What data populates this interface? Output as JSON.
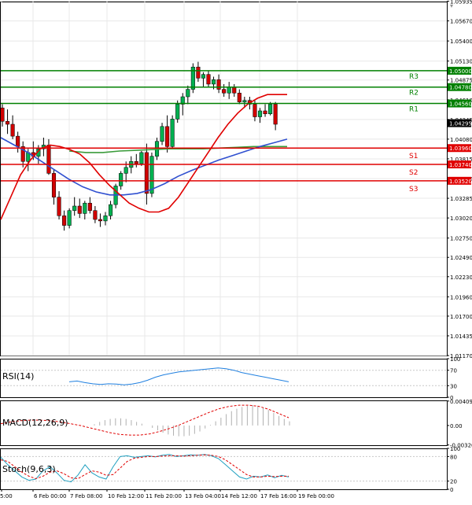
{
  "chart_data": {
    "type": "candlestick",
    "main": {
      "ylim": [
        1.0117,
        1.0593
      ],
      "y_ticks": [
        "1.05935",
        "1.05670",
        "1.05400",
        "1.05130",
        "1.04875",
        "1.04610",
        "1.04345",
        "1.04080",
        "1.03815",
        "1.03550",
        "1.03285",
        "1.03020",
        "1.02750",
        "1.02490",
        "1.02230",
        "1.01960",
        "1.01700",
        "1.01435",
        "1.01170"
      ],
      "current_price": {
        "label": "1.04295",
        "value": 1.04295
      },
      "levels": [
        {
          "name": "R3",
          "value": 1.05,
          "label": "1.05000",
          "color": "#008000"
        },
        {
          "name": "R2",
          "value": 1.0478,
          "label": "1.04780",
          "color": "#008000"
        },
        {
          "name": "R1",
          "value": 1.0456,
          "label": "1.04560",
          "color": "#008000"
        },
        {
          "name": "S1",
          "value": 1.0396,
          "label": "1.03960",
          "color": "#e00000"
        },
        {
          "name": "S2",
          "value": 1.0374,
          "label": "1.03740",
          "color": "#e00000"
        },
        {
          "name": "S3",
          "value": 1.0352,
          "label": "1.03520",
          "color": "#e00000"
        }
      ],
      "candles": [
        [
          1.045,
          1.0455,
          1.0425,
          1.0432
        ],
        [
          1.0432,
          1.0448,
          1.0415,
          1.0428
        ],
        [
          1.0428,
          1.044,
          1.0408,
          1.0412
        ],
        [
          1.0412,
          1.0418,
          1.039,
          1.0398
        ],
        [
          1.0398,
          1.0405,
          1.037,
          1.0378
        ],
        [
          1.0378,
          1.0395,
          1.0365,
          1.039
        ],
        [
          1.039,
          1.0405,
          1.038,
          1.0385
        ],
        [
          1.0385,
          1.04,
          1.0375,
          1.0395
        ],
        [
          1.0395,
          1.041,
          1.0385,
          1.04
        ],
        [
          1.04,
          1.0408,
          1.036,
          1.0362
        ],
        [
          1.0362,
          1.0368,
          1.032,
          1.033
        ],
        [
          1.033,
          1.0338,
          1.03,
          1.0305
        ],
        [
          1.0305,
          1.0312,
          1.0285,
          1.0292
        ],
        [
          1.0292,
          1.0315,
          1.0288,
          1.0312
        ],
        [
          1.0312,
          1.033,
          1.0305,
          1.0318
        ],
        [
          1.0318,
          1.0328,
          1.0302,
          1.0308
        ],
        [
          1.0308,
          1.0325,
          1.03,
          1.0322
        ],
        [
          1.0322,
          1.033,
          1.0308,
          1.0312
        ],
        [
          1.0312,
          1.0318,
          1.0295,
          1.03
        ],
        [
          1.03,
          1.0308,
          1.029,
          1.0298
        ],
        [
          1.0298,
          1.031,
          1.0292,
          1.0305
        ],
        [
          1.0305,
          1.0325,
          1.03,
          1.032
        ],
        [
          1.032,
          1.0348,
          1.0315,
          1.0345
        ],
        [
          1.0345,
          1.0365,
          1.034,
          1.0362
        ],
        [
          1.0362,
          1.0378,
          1.035,
          1.037
        ],
        [
          1.037,
          1.0385,
          1.0362,
          1.0378
        ],
        [
          1.0378,
          1.0388,
          1.037,
          1.0375
        ],
        [
          1.0375,
          1.0392,
          1.0372,
          1.039
        ],
        [
          1.039,
          1.0402,
          1.032,
          1.0335
        ],
        [
          1.0335,
          1.039,
          1.033,
          1.0385
        ],
        [
          1.0385,
          1.041,
          1.038,
          1.0405
        ],
        [
          1.0405,
          1.043,
          1.04,
          1.0425
        ],
        [
          1.0425,
          1.044,
          1.039,
          1.0398
        ],
        [
          1.0398,
          1.044,
          1.0395,
          1.0435
        ],
        [
          1.0435,
          1.046,
          1.043,
          1.0455
        ],
        [
          1.0455,
          1.047,
          1.044,
          1.0465
        ],
        [
          1.0465,
          1.048,
          1.0455,
          1.0475
        ],
        [
          1.0475,
          1.051,
          1.047,
          1.0505
        ],
        [
          1.0505,
          1.0512,
          1.0485,
          1.049
        ],
        [
          1.049,
          1.0498,
          1.0478,
          1.0495
        ],
        [
          1.0495,
          1.05,
          1.0478,
          1.0482
        ],
        [
          1.0482,
          1.0492,
          1.0475,
          1.0488
        ],
        [
          1.0488,
          1.0495,
          1.047,
          1.0475
        ],
        [
          1.0475,
          1.0482,
          1.0465,
          1.047
        ],
        [
          1.047,
          1.0485,
          1.0462,
          1.0478
        ],
        [
          1.0478,
          1.0482,
          1.0465,
          1.047
        ],
        [
          1.047,
          1.0475,
          1.0455,
          1.0458
        ],
        [
          1.0458,
          1.0465,
          1.045,
          1.046
        ],
        [
          1.046,
          1.0465,
          1.0448,
          1.0455
        ],
        [
          1.0455,
          1.046,
          1.0432,
          1.0438
        ],
        [
          1.0438,
          1.045,
          1.043,
          1.0446
        ],
        [
          1.0446,
          1.0455,
          1.0438,
          1.0442
        ],
        [
          1.0442,
          1.0458,
          1.044,
          1.0455
        ],
        [
          1.0455,
          1.0458,
          1.042,
          1.0428
        ]
      ],
      "ma_red": [
        1.03,
        1.033,
        1.036,
        1.038,
        1.0395,
        1.04,
        1.0398,
        1.0394,
        1.0388,
        1.0376,
        1.036,
        1.0346,
        1.0334,
        1.0322,
        1.0315,
        1.031,
        1.031,
        1.0315,
        1.033,
        1.035,
        1.037,
        1.039,
        1.041,
        1.0428,
        1.0443,
        1.0455,
        1.0463,
        1.0468,
        1.0468,
        1.0468
      ],
      "ma_blue": [
        1.041,
        1.04,
        1.039,
        1.0378,
        1.0366,
        1.0354,
        1.0344,
        1.0337,
        1.0333,
        1.0333,
        1.0335,
        1.034,
        1.0348,
        1.0358,
        1.0366,
        1.0373,
        1.038,
        1.0386,
        1.0392,
        1.0398,
        1.0403,
        1.0408
      ],
      "ma_green": [
        1.0392,
        1.039,
        1.039,
        1.0392,
        1.0393,
        1.0394,
        1.0395,
        1.0395,
        1.0395,
        1.0396,
        1.0397,
        1.0398,
        1.0398,
        1.0398
      ]
    },
    "rsi": {
      "label": "RSI(14)",
      "ylim": [
        0,
        100
      ],
      "y_ticks": [
        "100",
        "70",
        "30",
        "0"
      ],
      "values": [
        40,
        42,
        38,
        35,
        33,
        35,
        34,
        32,
        34,
        38,
        44,
        52,
        58,
        62,
        66,
        68,
        70,
        72,
        74,
        76,
        74,
        70,
        64,
        60,
        56,
        52,
        48,
        44,
        40
      ]
    },
    "macd": {
      "label": "MACD(12,26,9)",
      "ylim": [
        -0.0033,
        0.0042
      ],
      "y_ticks": [
        "0.00409",
        "0.00",
        "-0.00326"
      ],
      "histogram": [
        0.0002,
        0.0006,
        0.0009,
        0.0011,
        0.0012,
        0.0012,
        0.0011,
        0.0009,
        0.0006,
        0.0003,
        0.0,
        -0.0004,
        -0.0008,
        -0.0012,
        -0.0015,
        -0.0017,
        -0.0018,
        -0.0018,
        -0.0017,
        -0.0014,
        -0.001,
        -0.0005,
        0.0001,
        0.0007,
        0.0013,
        0.0019,
        0.0024,
        0.0028,
        0.0031,
        0.0033,
        0.0034,
        0.0033,
        0.003,
        0.0026,
        0.0021,
        0.0016,
        0.0011,
        0.0007
      ],
      "signal": [
        0.0003,
        0.0006,
        0.0008,
        0.0009,
        0.0009,
        0.0008,
        0.0006,
        0.0003,
        0.0,
        -0.0004,
        -0.0008,
        -0.0012,
        -0.0015,
        -0.0016,
        -0.0016,
        -0.0014,
        -0.001,
        -0.0005,
        0.0001,
        0.0008,
        0.0015,
        0.0022,
        0.0028,
        0.0032,
        0.0034,
        0.0034,
        0.0032,
        0.0027,
        0.002,
        0.0013
      ]
    },
    "stoch": {
      "label": "Stoch(9,6,3)",
      "ylim": [
        0,
        100
      ],
      "y_ticks": [
        "100",
        "80",
        "20",
        "0"
      ],
      "k": [
        78,
        60,
        45,
        30,
        22,
        25,
        45,
        55,
        40,
        22,
        18,
        35,
        60,
        40,
        30,
        25,
        55,
        80,
        82,
        78,
        80,
        82,
        79,
        83,
        85,
        80,
        82,
        84,
        83,
        85,
        82,
        75,
        60,
        45,
        30,
        25,
        32,
        30,
        35,
        28,
        34,
        30
      ],
      "d": [
        72,
        68,
        55,
        42,
        32,
        26,
        32,
        42,
        45,
        38,
        28,
        26,
        36,
        45,
        42,
        34,
        36,
        52,
        68,
        76,
        78,
        80,
        80,
        81,
        82,
        82,
        81,
        82,
        83,
        84,
        83,
        80,
        72,
        60,
        48,
        36,
        30,
        30,
        32,
        31,
        32,
        32
      ]
    },
    "x_tick_labels": [
      "5:00",
      "6 Feb 00:00",
      "7 Feb 08:00",
      "10 Feb 12:00",
      "11 Feb 20:00",
      "13 Feb 04:00",
      "14 Feb 12:00",
      "17 Feb 16:00",
      "19 Feb 00:00"
    ]
  }
}
